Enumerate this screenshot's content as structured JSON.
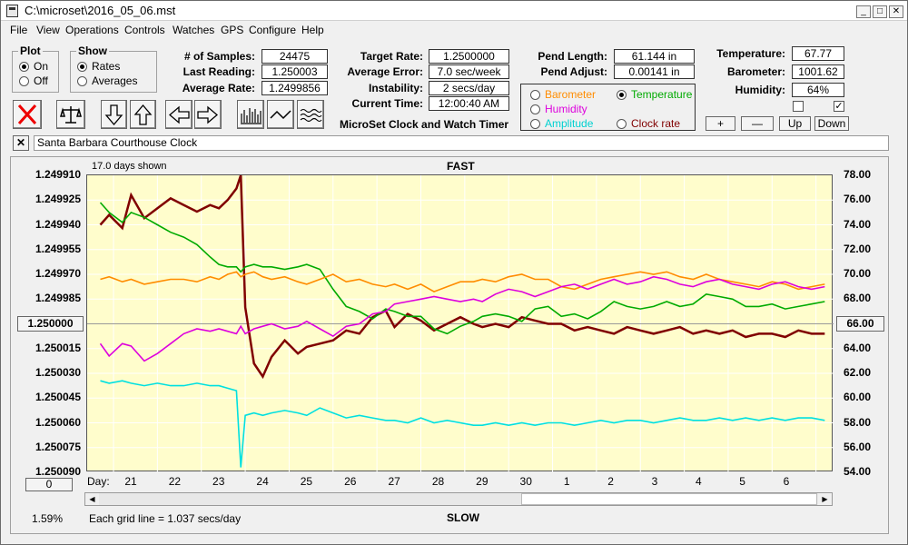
{
  "window": {
    "title": "C:\\microset\\2016_05_06.mst"
  },
  "menu": [
    "File",
    "View",
    "Operations",
    "Controls",
    "Watches",
    "GPS",
    "Configure",
    "Help"
  ],
  "plot_group": {
    "label": "Plot",
    "options": [
      "On",
      "Off"
    ],
    "selected": "On"
  },
  "show_group": {
    "label": "Show",
    "options": [
      "Rates",
      "Averages"
    ],
    "selected": "Rates"
  },
  "stats": {
    "samples_label": "# of Samples:",
    "samples": "24475",
    "last_reading_label": "Last Reading:",
    "last_reading": "1.250003",
    "average_rate_label": "Average Rate:",
    "average_rate": "1.2499856"
  },
  "timing": {
    "target_rate_label": "Target Rate:",
    "target_rate": "1.2500000",
    "average_error_label": "Average Error:",
    "average_error": "7.0 sec/week",
    "instability_label": "Instability:",
    "instability": "2 secs/day",
    "current_time_label": "Current Time:",
    "current_time": "12:00:40 AM",
    "app_name": "MicroSet Clock and Watch Timer"
  },
  "pendulum": {
    "length_label": "Pend Length:",
    "length": "61.144 in",
    "adjust_label": "Pend Adjust:",
    "adjust": "0.00141 in"
  },
  "series_select": {
    "barometer": "Barometer",
    "temperature": "Temperature",
    "humidity": "Humidity",
    "amplitude": "Amplitude",
    "clock_rate": "Clock rate",
    "selected": "Temperature"
  },
  "environment": {
    "temperature_label": "Temperature:",
    "temperature": "67.77",
    "barometer_label": "Barometer:",
    "barometer": "1001.62",
    "humidity_label": "Humidity:",
    "humidity": "64%"
  },
  "axis_buttons": {
    "plus": "+",
    "minus": "—",
    "up": "Up",
    "down": "Down"
  },
  "checkboxes": {
    "left_checked": false,
    "right_checked": true
  },
  "clock_name": "Santa Barbara Courthouse Clock",
  "chart_header": {
    "days_shown": "17.0 days shown",
    "top": "FAST",
    "bottom": "SLOW"
  },
  "left_axis_value": "1.250000",
  "right_axis_value": "66.00",
  "left_bottom_value": "0",
  "footer": {
    "percent": "1.59%",
    "grid_note": "Each grid line = 1.037 secs/day"
  },
  "colors": {
    "plot_bg": "#fffdcc",
    "grid": "#ffffff",
    "clock_rate": "#800000",
    "temperature": "#00aa00",
    "barometer": "#ff8c00",
    "humidity": "#dd00dd",
    "amplitude": "#00e0e0"
  },
  "chart_data": {
    "type": "line",
    "x_label": "Day:",
    "x_tick_labels": [
      "21",
      "22",
      "23",
      "24",
      "25",
      "26",
      "27",
      "28",
      "29",
      "30",
      "1",
      "2",
      "3",
      "4",
      "5",
      "6"
    ],
    "x": [
      20.3,
      20.5,
      20.8,
      21.0,
      21.3,
      21.6,
      21.9,
      22.2,
      22.5,
      22.8,
      23.0,
      23.2,
      23.4,
      23.5,
      23.6,
      23.8,
      24.0,
      24.2,
      24.5,
      24.8,
      25.0,
      25.3,
      25.6,
      25.9,
      26.2,
      26.5,
      26.8,
      27.0,
      27.3,
      27.6,
      27.9,
      28.2,
      28.5,
      28.8,
      29.0,
      29.3,
      29.6,
      29.9,
      30.2,
      30.5,
      30.8,
      31.1,
      31.4,
      31.7,
      32.0,
      32.3,
      32.6,
      32.9,
      33.2,
      33.5,
      33.8,
      34.1,
      34.4,
      34.7,
      35.0,
      35.3,
      35.6,
      35.9,
      36.2,
      36.5,
      36.8
    ],
    "left_axis": {
      "min": 1.24991,
      "max": 1.25009,
      "reversed": true,
      "ticks": [
        "1.249910",
        "1.249925",
        "1.249940",
        "1.249955",
        "1.249970",
        "1.249985",
        "1.250000",
        "1.250015",
        "1.250030",
        "1.250045",
        "1.250060",
        "1.250075",
        "1.250090"
      ]
    },
    "right_axis": {
      "min": 54.0,
      "max": 78.0,
      "ticks": [
        "78.00",
        "76.00",
        "74.00",
        "72.00",
        "70.00",
        "68.00",
        "66.00",
        "64.00",
        "62.00",
        "60.00",
        "58.00",
        "56.00",
        "54.00"
      ]
    },
    "series": [
      {
        "name": "Clock rate",
        "axis": "left",
        "color": "#800000",
        "values": [
          1.24994,
          1.249934,
          1.249942,
          1.249922,
          1.249936,
          1.24993,
          1.249924,
          1.249928,
          1.249932,
          1.249928,
          1.24993,
          1.249925,
          1.249918,
          1.24991,
          1.24999,
          1.250024,
          1.250032,
          1.25002,
          1.25001,
          1.250018,
          1.250014,
          1.250012,
          1.25001,
          1.250004,
          1.250006,
          1.249996,
          1.249992,
          1.250002,
          1.249994,
          1.249998,
          1.250004,
          1.25,
          1.249996,
          1.25,
          1.250002,
          1.25,
          1.250002,
          1.249996,
          1.249998,
          1.25,
          1.25,
          1.250004,
          1.250002,
          1.250004,
          1.250006,
          1.250002,
          1.250004,
          1.250006,
          1.250004,
          1.250002,
          1.250006,
          1.250004,
          1.250006,
          1.250004,
          1.250008,
          1.250006,
          1.250006,
          1.250008,
          1.250004,
          1.250006,
          1.250006
        ]
      },
      {
        "name": "Temperature",
        "axis": "right",
        "color": "#00aa00",
        "values": [
          75.8,
          75.0,
          74.2,
          75.0,
          74.6,
          74.0,
          73.4,
          73.0,
          72.4,
          71.4,
          70.8,
          70.6,
          70.6,
          70.2,
          70.6,
          70.8,
          70.6,
          70.6,
          70.4,
          70.6,
          70.8,
          70.4,
          68.8,
          67.4,
          67.0,
          66.4,
          67.2,
          67.0,
          66.6,
          66.6,
          65.6,
          65.2,
          65.8,
          66.2,
          66.6,
          66.8,
          66.6,
          66.2,
          67.2,
          67.4,
          66.6,
          66.8,
          66.4,
          67.0,
          67.8,
          67.4,
          67.2,
          67.4,
          67.8,
          67.4,
          67.6,
          68.4,
          68.2,
          68.0,
          67.4,
          67.4,
          67.6,
          67.2,
          67.4,
          67.6,
          67.8
        ]
      },
      {
        "name": "Barometer",
        "axis": "right",
        "color": "#ff8c00",
        "values": [
          69.6,
          69.8,
          69.4,
          69.6,
          69.2,
          69.4,
          69.6,
          69.6,
          69.4,
          69.8,
          69.6,
          70.0,
          70.2,
          69.8,
          70.0,
          70.2,
          69.8,
          69.6,
          69.8,
          69.4,
          69.2,
          69.6,
          70.0,
          69.4,
          69.6,
          69.2,
          69.0,
          69.2,
          68.8,
          69.2,
          68.6,
          69.0,
          69.4,
          69.4,
          69.6,
          69.4,
          69.8,
          70.0,
          69.6,
          69.6,
          69.0,
          68.8,
          69.2,
          69.6,
          69.8,
          70.0,
          70.2,
          70.0,
          70.2,
          69.8,
          69.6,
          70.0,
          69.6,
          69.4,
          69.2,
          69.0,
          69.4,
          69.2,
          68.8,
          69.0,
          69.2
        ]
      },
      {
        "name": "Humidity",
        "axis": "right",
        "color": "#dd00dd",
        "values": [
          64.4,
          63.4,
          64.4,
          64.2,
          63.0,
          63.6,
          64.4,
          65.2,
          65.6,
          65.4,
          65.6,
          65.4,
          65.2,
          65.8,
          65.2,
          65.6,
          65.8,
          66.0,
          65.6,
          65.8,
          66.2,
          65.6,
          65.0,
          65.8,
          66.0,
          66.8,
          67.0,
          67.6,
          67.8,
          68.0,
          68.2,
          68.0,
          67.8,
          68.0,
          67.8,
          68.4,
          68.8,
          68.6,
          68.2,
          68.6,
          69.0,
          69.2,
          68.8,
          69.2,
          69.6,
          69.2,
          69.4,
          69.8,
          69.6,
          69.2,
          69.0,
          69.4,
          69.6,
          69.2,
          69.0,
          68.8,
          69.2,
          69.4,
          69.0,
          68.8,
          69.0
        ]
      },
      {
        "name": "Amplitude",
        "axis": "right",
        "color": "#00e0e0",
        "values": [
          61.4,
          61.2,
          61.4,
          61.2,
          61.0,
          61.2,
          61.0,
          61.0,
          61.2,
          61.0,
          61.0,
          60.8,
          60.6,
          54.4,
          58.6,
          58.8,
          58.6,
          58.8,
          59.0,
          58.8,
          58.6,
          59.2,
          58.8,
          58.4,
          58.6,
          58.4,
          58.2,
          58.2,
          58.0,
          58.4,
          58.0,
          58.2,
          58.0,
          57.8,
          57.8,
          58.0,
          57.8,
          58.0,
          57.8,
          58.0,
          58.0,
          57.8,
          58.0,
          58.2,
          58.0,
          58.2,
          58.2,
          58.0,
          58.2,
          58.4,
          58.2,
          58.2,
          58.4,
          58.2,
          58.4,
          58.2,
          58.4,
          58.2,
          58.4,
          58.4,
          58.2
        ]
      }
    ]
  }
}
